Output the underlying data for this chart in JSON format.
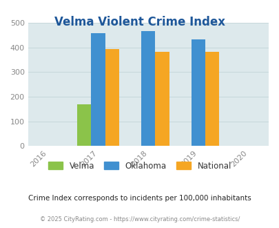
{
  "title": "Velma Violent Crime Index",
  "title_color": "#1e5799",
  "years": [
    2016,
    2017,
    2018,
    2019,
    2020
  ],
  "bar_years": [
    2017,
    2018,
    2019
  ],
  "velma": [
    170,
    0,
    0
  ],
  "oklahoma": [
    458,
    467,
    432
  ],
  "national": [
    394,
    382,
    381
  ],
  "velma_color": "#8bc34a",
  "oklahoma_color": "#4090d0",
  "national_color": "#f5a623",
  "ylim": [
    0,
    500
  ],
  "yticks": [
    0,
    100,
    200,
    300,
    400,
    500
  ],
  "bg_color": "#dde9ec",
  "fig_bg": "#ffffff",
  "bar_width": 0.28,
  "note": "Crime Index corresponds to incidents per 100,000 inhabitants",
  "footer": "© 2025 CityRating.com - https://www.cityrating.com/crime-statistics/",
  "legend_labels": [
    "Velma",
    "Oklahoma",
    "National"
  ],
  "note_color": "#222222",
  "footer_color": "#888888",
  "grid_color": "#c8d8dc"
}
